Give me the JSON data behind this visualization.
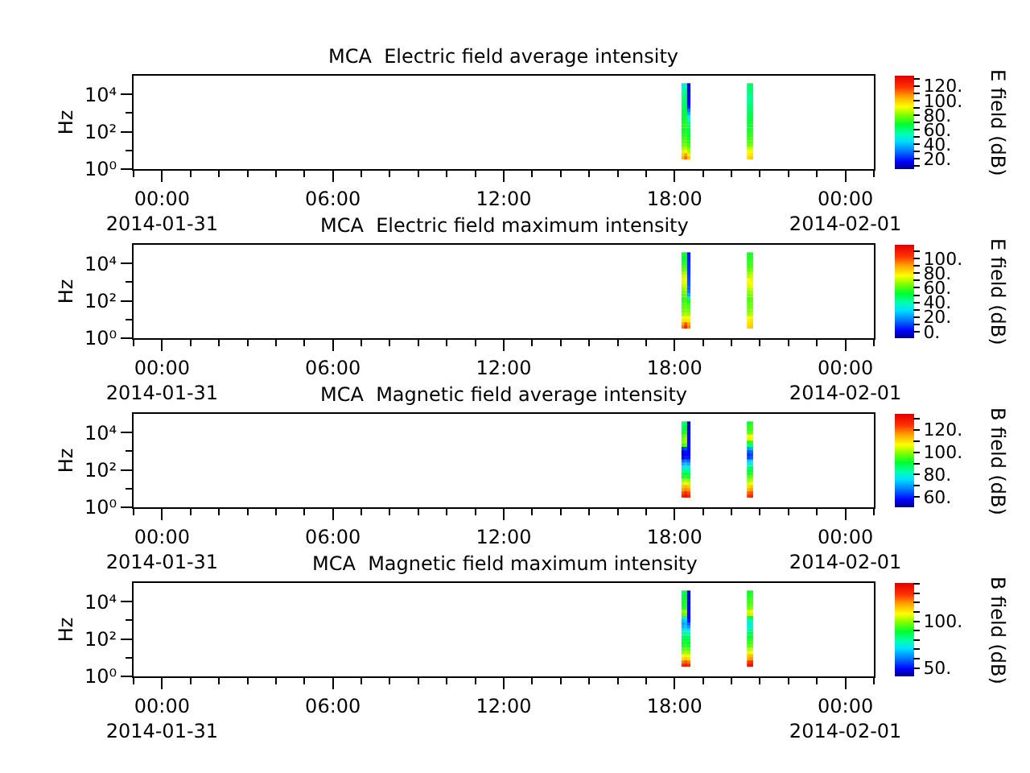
{
  "chart_data": [
    {
      "type": "scatter",
      "marker": "square",
      "title": "MCA  Electric field average intensity",
      "ylabel": "Hz",
      "clabel": "E field (dB)",
      "x": [
        18.3,
        18.3,
        18.3,
        18.3,
        18.3,
        18.3,
        18.3,
        18.3,
        18.3,
        18.3,
        18.3,
        18.3,
        18.3,
        18.3,
        18.3,
        18.3,
        18.3,
        18.3,
        18.3,
        18.3,
        18.3,
        18.3,
        18.3,
        18.3,
        18.4,
        18.4,
        18.4,
        18.4,
        18.4,
        18.4,
        18.4,
        18.4,
        18.4,
        18.4,
        18.4,
        18.4,
        18.4,
        18.4,
        18.4,
        18.4,
        18.4,
        18.4,
        18.4,
        18.4,
        18.4,
        18.4,
        18.4,
        18.4,
        18.5,
        18.5,
        18.5,
        18.5,
        18.5,
        18.5,
        18.5,
        18.5,
        18.5,
        18.5,
        18.5,
        18.5,
        18.5,
        18.5,
        18.5,
        18.5,
        18.5,
        18.5,
        18.5,
        18.5,
        18.5,
        18.5,
        18.5,
        18.5,
        20.6,
        20.6,
        20.6,
        20.6,
        20.6,
        20.6,
        20.6,
        20.6,
        20.6,
        20.6,
        20.6,
        20.6,
        20.6,
        20.6,
        20.6,
        20.6,
        20.6,
        20.6,
        20.6,
        20.6,
        20.6,
        20.6,
        20.6,
        20.6,
        20.7,
        20.7,
        20.7,
        20.7,
        20.7,
        20.7,
        20.7,
        20.7,
        20.7,
        20.7,
        20.7,
        20.7,
        20.7,
        20.7,
        20.7,
        20.7,
        20.7,
        20.7,
        20.7,
        20.7,
        20.7,
        20.7,
        20.7,
        20.7
      ],
      "values": [
        4,
        5.9,
        8.7,
        13,
        19,
        28,
        42,
        62,
        91,
        130,
        200,
        300,
        440,
        650,
        950,
        1400,
        2100,
        3100,
        4600,
        6800,
        10000,
        15000,
        22000,
        32000,
        4,
        5.9,
        8.7,
        13,
        19,
        28,
        42,
        62,
        91,
        130,
        200,
        300,
        440,
        650,
        950,
        1400,
        2100,
        3100,
        4600,
        6800,
        10000,
        15000,
        22000,
        32000,
        4,
        5.9,
        8.7,
        13,
        19,
        28,
        42,
        62,
        91,
        130,
        200,
        300,
        440,
        650,
        950,
        1400,
        2100,
        3100,
        4600,
        6800,
        10000,
        15000,
        22000,
        32000,
        4,
        5.9,
        8.7,
        13,
        19,
        28,
        42,
        62,
        91,
        130,
        200,
        300,
        440,
        650,
        950,
        1400,
        2100,
        3100,
        4600,
        6800,
        10000,
        15000,
        22000,
        32000,
        4,
        5.9,
        8.7,
        13,
        19,
        28,
        42,
        62,
        91,
        130,
        200,
        300,
        440,
        650,
        950,
        1400,
        2100,
        3100,
        4600,
        6800,
        10000,
        15000,
        22000,
        32000
      ],
      "cvalues": [
        102,
        98,
        88,
        84,
        78,
        75,
        73,
        71,
        69,
        68,
        70,
        69,
        67,
        66,
        65,
        63,
        62,
        61,
        60,
        59,
        57,
        54,
        50,
        46,
        112,
        106,
        90,
        86,
        80,
        77,
        75,
        73,
        71,
        70,
        72,
        71,
        70,
        69,
        68,
        67,
        66,
        65,
        64,
        63,
        62,
        60,
        57,
        53,
        100,
        95,
        84,
        80,
        74,
        71,
        69,
        67,
        66,
        64,
        63,
        60,
        54,
        46,
        38,
        30,
        20,
        17,
        15,
        14,
        13,
        12,
        12,
        11,
        97,
        94,
        91,
        86,
        78,
        75,
        73,
        71,
        70,
        69,
        68,
        67,
        66,
        65,
        63,
        61,
        60,
        59,
        57,
        56,
        58,
        59,
        60,
        61,
        99,
        96,
        93,
        88,
        80,
        77,
        75,
        73,
        72,
        71,
        70,
        69,
        68,
        66,
        64,
        63,
        62,
        61,
        59,
        58,
        60,
        61,
        62,
        63
      ],
      "clim": [
        6,
        134
      ],
      "cticks": [
        {
          "value": 10,
          "label": null
        },
        {
          "value": 20,
          "label": "20."
        },
        {
          "value": 30,
          "label": null
        },
        {
          "value": 40,
          "label": "40."
        },
        {
          "value": 50,
          "label": null
        },
        {
          "value": 60,
          "label": "60."
        },
        {
          "value": 70,
          "label": null
        },
        {
          "value": 80,
          "label": "80."
        },
        {
          "value": 90,
          "label": null
        },
        {
          "value": 100,
          "label": "100."
        },
        {
          "value": 110,
          "label": null
        },
        {
          "value": 120,
          "label": "120."
        },
        {
          "value": 130,
          "label": null
        }
      ],
      "xlim": [
        -1,
        25
      ],
      "xticks": [
        {
          "value": -1,
          "label": null
        },
        {
          "value": 0,
          "label": "00:00\n2014-01-31"
        },
        {
          "value": 1,
          "label": null
        },
        {
          "value": 2,
          "label": null
        },
        {
          "value": 3,
          "label": null
        },
        {
          "value": 4,
          "label": null
        },
        {
          "value": 5,
          "label": null
        },
        {
          "value": 6,
          "label": "06:00"
        },
        {
          "value": 7,
          "label": null
        },
        {
          "value": 8,
          "label": null
        },
        {
          "value": 9,
          "label": null
        },
        {
          "value": 10,
          "label": null
        },
        {
          "value": 11,
          "label": null
        },
        {
          "value": 12,
          "label": "12:00"
        },
        {
          "value": 13,
          "label": null
        },
        {
          "value": 14,
          "label": null
        },
        {
          "value": 15,
          "label": null
        },
        {
          "value": 16,
          "label": null
        },
        {
          "value": 17,
          "label": null
        },
        {
          "value": 18,
          "label": "18:00"
        },
        {
          "value": 19,
          "label": null
        },
        {
          "value": 20,
          "label": null
        },
        {
          "value": 21,
          "label": null
        },
        {
          "value": 22,
          "label": null
        },
        {
          "value": 23,
          "label": null
        },
        {
          "value": 24,
          "label": "00:00\n2014-02-01"
        },
        {
          "value": 25,
          "label": null
        }
      ],
      "ylim": [
        1,
        100000
      ],
      "yticks": [
        {
          "value": 1,
          "label": "10⁰"
        },
        {
          "value": 10,
          "label": null
        },
        {
          "value": 100,
          "label": "10²"
        },
        {
          "value": 1000,
          "label": null
        },
        {
          "value": 10000,
          "label": "10⁴"
        }
      ],
      "log": true
    },
    {
      "type": "scatter",
      "marker": "square",
      "title": "MCA  Electric field maximum intensity",
      "ylabel": "Hz",
      "clabel": "E field (dB)",
      "x": [
        18.3,
        18.3,
        18.3,
        18.3,
        18.3,
        18.3,
        18.3,
        18.3,
        18.3,
        18.3,
        18.3,
        18.3,
        18.3,
        18.3,
        18.3,
        18.3,
        18.3,
        18.3,
        18.3,
        18.3,
        18.3,
        18.3,
        18.3,
        18.3,
        18.4,
        18.4,
        18.4,
        18.4,
        18.4,
        18.4,
        18.4,
        18.4,
        18.4,
        18.4,
        18.4,
        18.4,
        18.4,
        18.4,
        18.4,
        18.4,
        18.4,
        18.4,
        18.4,
        18.4,
        18.4,
        18.4,
        18.4,
        18.4,
        18.5,
        18.5,
        18.5,
        18.5,
        18.5,
        18.5,
        18.5,
        18.5,
        18.5,
        18.5,
        18.5,
        18.5,
        18.5,
        18.5,
        18.5,
        18.5,
        18.5,
        18.5,
        18.5,
        18.5,
        18.5,
        18.5,
        18.5,
        18.5,
        20.6,
        20.6,
        20.6,
        20.6,
        20.6,
        20.6,
        20.6,
        20.6,
        20.6,
        20.6,
        20.6,
        20.6,
        20.6,
        20.6,
        20.6,
        20.6,
        20.6,
        20.6,
        20.6,
        20.6,
        20.6,
        20.6,
        20.6,
        20.6,
        20.7,
        20.7,
        20.7,
        20.7,
        20.7,
        20.7,
        20.7,
        20.7,
        20.7,
        20.7,
        20.7,
        20.7,
        20.7,
        20.7,
        20.7,
        20.7,
        20.7,
        20.7,
        20.7,
        20.7,
        20.7,
        20.7,
        20.7,
        20.7
      ],
      "values": [
        4,
        5.9,
        8.7,
        13,
        19,
        28,
        42,
        62,
        91,
        130,
        200,
        300,
        440,
        650,
        950,
        1400,
        2100,
        3100,
        4600,
        6800,
        10000,
        15000,
        22000,
        32000,
        4,
        5.9,
        8.7,
        13,
        19,
        28,
        42,
        62,
        91,
        130,
        200,
        300,
        440,
        650,
        950,
        1400,
        2100,
        3100,
        4600,
        6800,
        10000,
        15000,
        22000,
        32000,
        4,
        5.9,
        8.7,
        13,
        19,
        28,
        42,
        62,
        91,
        130,
        200,
        300,
        440,
        650,
        950,
        1400,
        2100,
        3100,
        4600,
        6800,
        10000,
        15000,
        22000,
        32000,
        4,
        5.9,
        8.7,
        13,
        19,
        28,
        42,
        62,
        91,
        130,
        200,
        300,
        440,
        650,
        950,
        1400,
        2100,
        3100,
        4600,
        6800,
        10000,
        15000,
        22000,
        32000,
        4,
        5.9,
        8.7,
        13,
        19,
        28,
        42,
        62,
        91,
        130,
        200,
        300,
        440,
        650,
        950,
        1400,
        2100,
        3100,
        4600,
        6800,
        10000,
        15000,
        22000,
        32000
      ],
      "cvalues": [
        96,
        90,
        80,
        76,
        68,
        64,
        61,
        60,
        58,
        57,
        60,
        63,
        66,
        70,
        73,
        75,
        72,
        68,
        62,
        59,
        55,
        53,
        51,
        49,
        108,
        100,
        82,
        78,
        70,
        66,
        63,
        62,
        60,
        59,
        62,
        66,
        69,
        72,
        75,
        77,
        74,
        70,
        64,
        60,
        57,
        55,
        53,
        51,
        94,
        90,
        80,
        76,
        68,
        64,
        61,
        59,
        54,
        46,
        22,
        16,
        13,
        12,
        11,
        10,
        9,
        8,
        7,
        6,
        5,
        4,
        4,
        3,
        83,
        81,
        79,
        76,
        68,
        65,
        63,
        62,
        61,
        60,
        63,
        66,
        70,
        73,
        75,
        77,
        70,
        67,
        62,
        59,
        57,
        56,
        55,
        54,
        85,
        83,
        81,
        78,
        70,
        67,
        65,
        64,
        63,
        62,
        65,
        68,
        72,
        75,
        77,
        79,
        72,
        69,
        64,
        61,
        59,
        58,
        57,
        55
      ],
      "clim": [
        -9,
        119
      ],
      "cticks": [
        {
          "value": 0,
          "label": "0."
        },
        {
          "value": 10,
          "label": null
        },
        {
          "value": 20,
          "label": "20."
        },
        {
          "value": 30,
          "label": null
        },
        {
          "value": 40,
          "label": "40."
        },
        {
          "value": 50,
          "label": null
        },
        {
          "value": 60,
          "label": "60."
        },
        {
          "value": 70,
          "label": null
        },
        {
          "value": 80,
          "label": "80."
        },
        {
          "value": 90,
          "label": null
        },
        {
          "value": 100,
          "label": "100."
        },
        {
          "value": 110,
          "label": null
        }
      ],
      "xlim": [
        -1,
        25
      ],
      "xticks": [
        {
          "value": -1,
          "label": null
        },
        {
          "value": 0,
          "label": "00:00\n2014-01-31"
        },
        {
          "value": 1,
          "label": null
        },
        {
          "value": 2,
          "label": null
        },
        {
          "value": 3,
          "label": null
        },
        {
          "value": 4,
          "label": null
        },
        {
          "value": 5,
          "label": null
        },
        {
          "value": 6,
          "label": "06:00"
        },
        {
          "value": 7,
          "label": null
        },
        {
          "value": 8,
          "label": null
        },
        {
          "value": 9,
          "label": null
        },
        {
          "value": 10,
          "label": null
        },
        {
          "value": 11,
          "label": null
        },
        {
          "value": 12,
          "label": "12:00"
        },
        {
          "value": 13,
          "label": null
        },
        {
          "value": 14,
          "label": null
        },
        {
          "value": 15,
          "label": null
        },
        {
          "value": 16,
          "label": null
        },
        {
          "value": 17,
          "label": null
        },
        {
          "value": 18,
          "label": "18:00"
        },
        {
          "value": 19,
          "label": null
        },
        {
          "value": 20,
          "label": null
        },
        {
          "value": 21,
          "label": null
        },
        {
          "value": 22,
          "label": null
        },
        {
          "value": 23,
          "label": null
        },
        {
          "value": 24,
          "label": "00:00\n2014-02-01"
        },
        {
          "value": 25,
          "label": null
        }
      ],
      "ylim": [
        1,
        100000
      ],
      "yticks": [
        {
          "value": 1,
          "label": "10⁰"
        },
        {
          "value": 10,
          "label": null
        },
        {
          "value": 100,
          "label": "10²"
        },
        {
          "value": 1000,
          "label": null
        },
        {
          "value": 10000,
          "label": "10⁴"
        }
      ],
      "log": true
    },
    {
      "type": "scatter",
      "marker": "square",
      "title": "MCA  Magnetic field average intensity",
      "ylabel": "Hz",
      "clabel": "B field (dB)",
      "x": [
        18.3,
        18.3,
        18.3,
        18.3,
        18.3,
        18.3,
        18.3,
        18.3,
        18.3,
        18.3,
        18.3,
        18.3,
        18.3,
        18.3,
        18.3,
        18.3,
        18.3,
        18.3,
        18.3,
        18.3,
        18.3,
        18.3,
        18.3,
        18.3,
        18.4,
        18.4,
        18.4,
        18.4,
        18.4,
        18.4,
        18.4,
        18.4,
        18.4,
        18.4,
        18.4,
        18.4,
        18.4,
        18.4,
        18.4,
        18.4,
        18.4,
        18.4,
        18.4,
        18.4,
        18.4,
        18.4,
        18.4,
        18.4,
        18.5,
        18.5,
        18.5,
        18.5,
        18.5,
        18.5,
        18.5,
        18.5,
        18.5,
        18.5,
        18.5,
        18.5,
        18.5,
        18.5,
        18.5,
        18.5,
        18.5,
        18.5,
        18.5,
        18.5,
        18.5,
        18.5,
        18.5,
        18.5,
        20.6,
        20.6,
        20.6,
        20.6,
        20.6,
        20.6,
        20.6,
        20.6,
        20.6,
        20.6,
        20.6,
        20.6,
        20.6,
        20.6,
        20.6,
        20.6,
        20.6,
        20.6,
        20.6,
        20.6,
        20.6,
        20.6,
        20.6,
        20.6,
        20.7,
        20.7,
        20.7,
        20.7,
        20.7,
        20.7,
        20.7,
        20.7,
        20.7,
        20.7,
        20.7,
        20.7,
        20.7,
        20.7,
        20.7,
        20.7,
        20.7,
        20.7,
        20.7,
        20.7,
        20.7,
        20.7,
        20.7,
        20.7
      ],
      "values": [
        4,
        5.9,
        8.7,
        13,
        19,
        28,
        42,
        62,
        91,
        130,
        200,
        300,
        440,
        650,
        950,
        1400,
        2100,
        3100,
        4600,
        6800,
        10000,
        15000,
        22000,
        32000,
        4,
        5.9,
        8.7,
        13,
        19,
        28,
        42,
        62,
        91,
        130,
        200,
        300,
        440,
        650,
        950,
        1400,
        2100,
        3100,
        4600,
        6800,
        10000,
        15000,
        22000,
        32000,
        4,
        5.9,
        8.7,
        13,
        19,
        28,
        42,
        62,
        91,
        130,
        200,
        300,
        440,
        650,
        950,
        1400,
        2100,
        3100,
        4600,
        6800,
        10000,
        15000,
        22000,
        32000,
        4,
        5.9,
        8.7,
        13,
        19,
        28,
        42,
        62,
        91,
        130,
        200,
        300,
        440,
        650,
        950,
        1400,
        2100,
        3100,
        4600,
        6800,
        10000,
        15000,
        22000,
        32000,
        4,
        5.9,
        8.7,
        13,
        19,
        28,
        42,
        62,
        91,
        130,
        200,
        300,
        440,
        650,
        950,
        1400,
        2100,
        3100,
        4600,
        6800,
        10000,
        15000,
        22000,
        32000
      ],
      "cvalues": [
        126,
        122,
        116,
        112,
        104,
        100,
        92,
        89,
        84,
        80,
        72,
        66,
        58,
        56,
        57,
        62,
        94,
        99,
        98,
        96,
        91,
        89,
        87,
        85,
        130,
        126,
        118,
        114,
        106,
        102,
        94,
        91,
        86,
        82,
        74,
        68,
        60,
        58,
        59,
        64,
        96,
        101,
        101,
        99,
        94,
        91,
        91,
        89,
        126,
        122,
        116,
        112,
        104,
        100,
        92,
        89,
        84,
        80,
        72,
        66,
        59,
        58,
        57,
        57,
        58,
        57,
        56,
        56,
        55,
        54,
        54,
        53,
        124,
        120,
        114,
        110,
        104,
        100,
        96,
        92,
        90,
        86,
        80,
        74,
        63,
        61,
        64,
        70,
        84,
        92,
        104,
        106,
        97,
        94,
        93,
        91,
        126,
        122,
        116,
        112,
        106,
        102,
        98,
        94,
        92,
        88,
        82,
        76,
        65,
        63,
        66,
        72,
        86,
        94,
        105,
        107,
        98,
        95,
        95,
        93
      ],
      "clim": [
        51,
        134
      ],
      "cticks": [
        {
          "value": 60,
          "label": "60."
        },
        {
          "value": 70,
          "label": null
        },
        {
          "value": 80,
          "label": "80."
        },
        {
          "value": 90,
          "label": null
        },
        {
          "value": 100,
          "label": "100."
        },
        {
          "value": 110,
          "label": null
        },
        {
          "value": 120,
          "label": "120."
        },
        {
          "value": 130,
          "label": null
        }
      ],
      "xlim": [
        -1,
        25
      ],
      "xticks": [
        {
          "value": -1,
          "label": null
        },
        {
          "value": 0,
          "label": "00:00\n2014-01-31"
        },
        {
          "value": 1,
          "label": null
        },
        {
          "value": 2,
          "label": null
        },
        {
          "value": 3,
          "label": null
        },
        {
          "value": 4,
          "label": null
        },
        {
          "value": 5,
          "label": null
        },
        {
          "value": 6,
          "label": "06:00"
        },
        {
          "value": 7,
          "label": null
        },
        {
          "value": 8,
          "label": null
        },
        {
          "value": 9,
          "label": null
        },
        {
          "value": 10,
          "label": null
        },
        {
          "value": 11,
          "label": null
        },
        {
          "value": 12,
          "label": "12:00"
        },
        {
          "value": 13,
          "label": null
        },
        {
          "value": 14,
          "label": null
        },
        {
          "value": 15,
          "label": null
        },
        {
          "value": 16,
          "label": null
        },
        {
          "value": 17,
          "label": null
        },
        {
          "value": 18,
          "label": "18:00"
        },
        {
          "value": 19,
          "label": null
        },
        {
          "value": 20,
          "label": null
        },
        {
          "value": 21,
          "label": null
        },
        {
          "value": 22,
          "label": null
        },
        {
          "value": 23,
          "label": null
        },
        {
          "value": 24,
          "label": "00:00\n2014-02-01"
        },
        {
          "value": 25,
          "label": null
        }
      ],
      "ylim": [
        1,
        100000
      ],
      "yticks": [
        {
          "value": 1,
          "label": "10⁰"
        },
        {
          "value": 10,
          "label": null
        },
        {
          "value": 100,
          "label": "10²"
        },
        {
          "value": 1000,
          "label": null
        },
        {
          "value": 10000,
          "label": "10⁴"
        }
      ],
      "log": true
    },
    {
      "type": "scatter",
      "marker": "square",
      "title": "MCA  Magnetic field maximum intensity",
      "ylabel": "Hz",
      "clabel": "B field (dB)",
      "x": [
        18.3,
        18.3,
        18.3,
        18.3,
        18.3,
        18.3,
        18.3,
        18.3,
        18.3,
        18.3,
        18.3,
        18.3,
        18.3,
        18.3,
        18.3,
        18.3,
        18.3,
        18.3,
        18.3,
        18.3,
        18.3,
        18.3,
        18.3,
        18.3,
        18.4,
        18.4,
        18.4,
        18.4,
        18.4,
        18.4,
        18.4,
        18.4,
        18.4,
        18.4,
        18.4,
        18.4,
        18.4,
        18.4,
        18.4,
        18.4,
        18.4,
        18.4,
        18.4,
        18.4,
        18.4,
        18.4,
        18.4,
        18.4,
        18.5,
        18.5,
        18.5,
        18.5,
        18.5,
        18.5,
        18.5,
        18.5,
        18.5,
        18.5,
        18.5,
        18.5,
        18.5,
        18.5,
        18.5,
        18.5,
        18.5,
        18.5,
        18.5,
        18.5,
        18.5,
        18.5,
        18.5,
        18.5,
        20.6,
        20.6,
        20.6,
        20.6,
        20.6,
        20.6,
        20.6,
        20.6,
        20.6,
        20.6,
        20.6,
        20.6,
        20.6,
        20.6,
        20.6,
        20.6,
        20.6,
        20.6,
        20.6,
        20.6,
        20.6,
        20.6,
        20.6,
        20.6,
        20.7,
        20.7,
        20.7,
        20.7,
        20.7,
        20.7,
        20.7,
        20.7,
        20.7,
        20.7,
        20.7,
        20.7,
        20.7,
        20.7,
        20.7,
        20.7,
        20.7,
        20.7,
        20.7,
        20.7,
        20.7,
        20.7,
        20.7,
        20.7
      ],
      "values": [
        4,
        5.9,
        8.7,
        13,
        19,
        28,
        42,
        62,
        91,
        130,
        200,
        300,
        440,
        650,
        950,
        1400,
        2100,
        3100,
        4600,
        6800,
        10000,
        15000,
        22000,
        32000,
        4,
        5.9,
        8.7,
        13,
        19,
        28,
        42,
        62,
        91,
        130,
        200,
        300,
        440,
        650,
        950,
        1400,
        2100,
        3100,
        4600,
        6800,
        10000,
        15000,
        22000,
        32000,
        4,
        5.9,
        8.7,
        13,
        19,
        28,
        42,
        62,
        91,
        130,
        200,
        300,
        440,
        650,
        950,
        1400,
        2100,
        3100,
        4600,
        6800,
        10000,
        15000,
        22000,
        32000,
        4,
        5.9,
        8.7,
        13,
        19,
        28,
        42,
        62,
        91,
        130,
        200,
        300,
        440,
        650,
        950,
        1400,
        2100,
        3100,
        4600,
        6800,
        10000,
        15000,
        22000,
        32000,
        4,
        5.9,
        8.7,
        13,
        19,
        28,
        42,
        62,
        91,
        130,
        200,
        300,
        440,
        650,
        950,
        1400,
        2100,
        3100,
        4600,
        6800,
        10000,
        15000,
        22000,
        32000
      ],
      "cvalues": [
        130,
        122,
        112,
        108,
        100,
        96,
        91,
        89,
        87,
        84,
        80,
        74,
        67,
        65,
        68,
        74,
        96,
        99,
        92,
        90,
        89,
        88,
        87,
        85,
        134,
        126,
        114,
        110,
        102,
        98,
        93,
        91,
        89,
        86,
        82,
        76,
        69,
        67,
        70,
        76,
        98,
        101,
        94,
        92,
        91,
        90,
        89,
        87,
        130,
        122,
        112,
        108,
        100,
        96,
        91,
        89,
        87,
        84,
        80,
        72,
        64,
        58,
        51,
        49,
        48,
        48,
        47,
        47,
        46,
        46,
        46,
        45,
        134,
        128,
        118,
        114,
        106,
        102,
        96,
        93,
        91,
        88,
        86,
        80,
        75,
        73,
        76,
        84,
        102,
        105,
        98,
        95,
        93,
        92,
        91,
        89,
        136,
        130,
        120,
        116,
        108,
        104,
        98,
        95,
        93,
        90,
        88,
        82,
        77,
        75,
        78,
        86,
        104,
        107,
        100,
        97,
        95,
        94,
        93,
        91
      ],
      "clim": [
        41,
        141
      ],
      "cticks": [
        {
          "value": 50,
          "label": "50."
        },
        {
          "value": 60,
          "label": null
        },
        {
          "value": 70,
          "label": null
        },
        {
          "value": 80,
          "label": null
        },
        {
          "value": 90,
          "label": null
        },
        {
          "value": 100,
          "label": "100."
        },
        {
          "value": 110,
          "label": null
        },
        {
          "value": 120,
          "label": null
        },
        {
          "value": 130,
          "label": null
        },
        {
          "value": 140,
          "label": null
        }
      ],
      "xlim": [
        -1,
        25
      ],
      "xticks": [
        {
          "value": -1,
          "label": null
        },
        {
          "value": 0,
          "label": "00:00\n2014-01-31"
        },
        {
          "value": 1,
          "label": null
        },
        {
          "value": 2,
          "label": null
        },
        {
          "value": 3,
          "label": null
        },
        {
          "value": 4,
          "label": null
        },
        {
          "value": 5,
          "label": null
        },
        {
          "value": 6,
          "label": "06:00"
        },
        {
          "value": 7,
          "label": null
        },
        {
          "value": 8,
          "label": null
        },
        {
          "value": 9,
          "label": null
        },
        {
          "value": 10,
          "label": null
        },
        {
          "value": 11,
          "label": null
        },
        {
          "value": 12,
          "label": "12:00"
        },
        {
          "value": 13,
          "label": null
        },
        {
          "value": 14,
          "label": null
        },
        {
          "value": 15,
          "label": null
        },
        {
          "value": 16,
          "label": null
        },
        {
          "value": 17,
          "label": null
        },
        {
          "value": 18,
          "label": "18:00"
        },
        {
          "value": 19,
          "label": null
        },
        {
          "value": 20,
          "label": null
        },
        {
          "value": 21,
          "label": null
        },
        {
          "value": 22,
          "label": null
        },
        {
          "value": 23,
          "label": null
        },
        {
          "value": 24,
          "label": "00:00\n2014-02-01"
        },
        {
          "value": 25,
          "label": null
        }
      ],
      "ylim": [
        1,
        100000
      ],
      "yticks": [
        {
          "value": 1,
          "label": "10⁰"
        },
        {
          "value": 10,
          "label": null
        },
        {
          "value": 100,
          "label": "10²"
        },
        {
          "value": 1000,
          "label": null
        },
        {
          "value": 10000,
          "label": "10⁴"
        }
      ],
      "log": true
    }
  ]
}
